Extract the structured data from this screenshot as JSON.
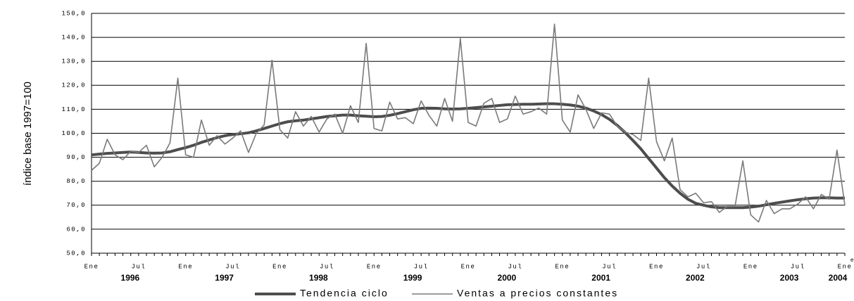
{
  "chart_data": {
    "type": "line",
    "y_label": "índice base 1997=100",
    "categories": [
      "Ene",
      null,
      null,
      null,
      null,
      null,
      "Jul",
      null,
      null,
      null,
      null,
      null,
      "Ene",
      null,
      null,
      null,
      null,
      null,
      "Jul",
      null,
      null,
      null,
      null,
      null,
      "Ene",
      null,
      null,
      null,
      null,
      null,
      "Jul",
      null,
      null,
      null,
      null,
      null,
      "Ene",
      null,
      null,
      null,
      null,
      null,
      "Jul",
      null,
      null,
      null,
      null,
      null,
      "Ene",
      null,
      null,
      null,
      null,
      null,
      "Jul",
      null,
      null,
      null,
      null,
      null,
      "Ene",
      null,
      null,
      null,
      null,
      null,
      "Jul",
      null,
      null,
      null,
      null,
      null,
      "Ene",
      null,
      null,
      null,
      null,
      null,
      "Jul",
      null,
      null,
      null,
      null,
      null,
      "Ene",
      null,
      null,
      null,
      null,
      null,
      "Jul",
      null,
      null,
      null,
      null,
      null,
      "Ene"
    ],
    "years": [
      "1996",
      "1997",
      "1998",
      "1999",
      "2000",
      "2001",
      "2002",
      "2003",
      "2004"
    ],
    "x_note": "e",
    "ylim": [
      50,
      150
    ],
    "yticks": [
      {
        "value": 50,
        "label": "50,0"
      },
      {
        "value": 60,
        "label": "60,0"
      },
      {
        "value": 70,
        "label": "70,0"
      },
      {
        "value": 80,
        "label": "80,0"
      },
      {
        "value": 90,
        "label": "90,0"
      },
      {
        "value": 100,
        "label": "100,0"
      },
      {
        "value": 110,
        "label": "110,0"
      },
      {
        "value": 120,
        "label": "120,0"
      },
      {
        "value": 130,
        "label": "130,0"
      },
      {
        "value": 140,
        "label": "140,0"
      },
      {
        "value": 150,
        "label": "150,0"
      }
    ],
    "grid": true,
    "series": [
      {
        "name": "Tendencia ciclo",
        "color": "#4d4d4d",
        "width": 4,
        "values": [
          91,
          91.3,
          91.6,
          91.8,
          92,
          92.2,
          92,
          91.8,
          91.7,
          91.8,
          92.3,
          93.2,
          94,
          95,
          96.2,
          97.2,
          98.2,
          99,
          99.5,
          99.8,
          100.2,
          101,
          102,
          103,
          104,
          104.8,
          105.2,
          105.5,
          106,
          106.5,
          107,
          107.3,
          107.6,
          107.6,
          107.3,
          107.1,
          106.9,
          107,
          107.5,
          108.2,
          109,
          109.8,
          110.4,
          110.5,
          110.4,
          110.2,
          110.1,
          110.2,
          110.4,
          110.7,
          111,
          111.3,
          111.6,
          111.9,
          112,
          112.1,
          112.1,
          112.2,
          112.3,
          112.3,
          112.1,
          111.8,
          111.3,
          110.5,
          109.3,
          107.8,
          105.8,
          103.3,
          100.3,
          97,
          93.5,
          89.5,
          85.5,
          81.5,
          78,
          75,
          72.5,
          70.8,
          70,
          69.3,
          69,
          69,
          69,
          69,
          69.2,
          69.6,
          70.2,
          70.8,
          71.3,
          71.8,
          72.3,
          72.7,
          73,
          73.1,
          73.1,
          73,
          73
        ]
      },
      {
        "name": "Ventas a precios constantes",
        "color": "#7a7a7a",
        "width": 1.6,
        "values": [
          84.5,
          87.5,
          97.5,
          91,
          89,
          92.5,
          92,
          95,
          86,
          90,
          96,
          123,
          91,
          90,
          105.5,
          95,
          99,
          95.5,
          98,
          101,
          92,
          100,
          103.5,
          130.5,
          101.5,
          98,
          109,
          103,
          107,
          100.5,
          106,
          108,
          100,
          111.5,
          104.5,
          137.5,
          102,
          101,
          113,
          106,
          106.5,
          104,
          113.5,
          107.5,
          103,
          114.5,
          105,
          139.5,
          104.5,
          103,
          112.5,
          114.5,
          104.5,
          106,
          115.5,
          108,
          109,
          110.5,
          108,
          145.5,
          105.5,
          100.5,
          116,
          110,
          102,
          108.5,
          108,
          103,
          100.5,
          99.5,
          97,
          123,
          96.5,
          88.5,
          98,
          76.5,
          73.5,
          75,
          71,
          71.5,
          67,
          69.5,
          69.5,
          88.5,
          66,
          63,
          72,
          66.5,
          68.5,
          68.5,
          70.5,
          73.5,
          68.5,
          74.5,
          72.5,
          93,
          70
        ]
      }
    ]
  }
}
